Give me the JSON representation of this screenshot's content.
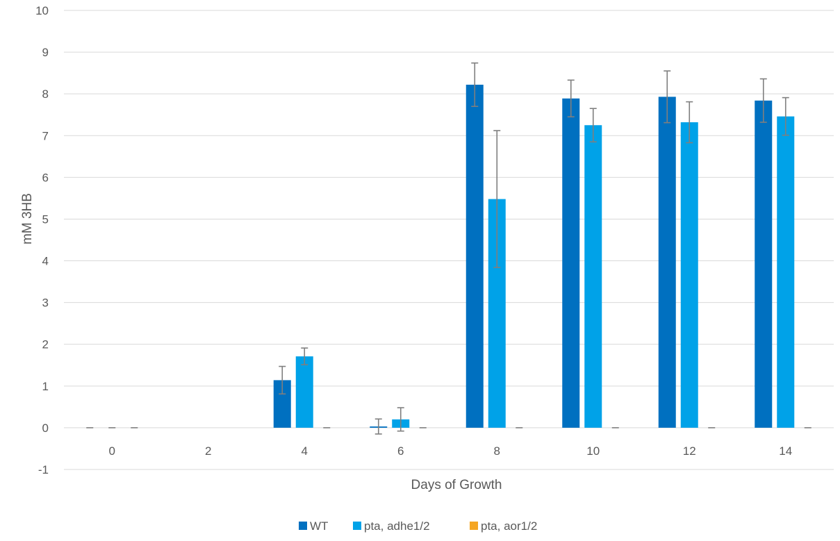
{
  "chart_data": {
    "type": "bar",
    "title": "",
    "xlabel": "Days of Growth",
    "ylabel": "mM 3HB",
    "categories": [
      "0",
      "2",
      "4",
      "6",
      "8",
      "10",
      "12",
      "14"
    ],
    "ylim": [
      -1,
      10
    ],
    "yticks": [
      "-1",
      "0",
      "1",
      "2",
      "3",
      "4",
      "5",
      "6",
      "7",
      "8",
      "9",
      "10"
    ],
    "grid": true,
    "legend_position": "bottom",
    "series": [
      {
        "name": "WT",
        "color": "#0070c0",
        "values": [
          0,
          null,
          1.14,
          0.03,
          8.22,
          7.89,
          7.93,
          7.84
        ],
        "errors": [
          0,
          null,
          0.33,
          0.18,
          0.52,
          0.44,
          0.62,
          0.52
        ]
      },
      {
        "name": "pta, adhe1/2",
        "color": "#00a2e8",
        "values": [
          0,
          null,
          1.71,
          0.2,
          5.48,
          7.25,
          7.32,
          7.46
        ],
        "errors": [
          0,
          null,
          0.2,
          0.28,
          1.64,
          0.4,
          0.49,
          0.45
        ]
      },
      {
        "name": "pta, aor1/2",
        "color": "#f5a623",
        "values": [
          0,
          null,
          0,
          0,
          0,
          0,
          0,
          0
        ],
        "errors": [
          0,
          null,
          0,
          0,
          0,
          0,
          0,
          0
        ]
      }
    ]
  }
}
